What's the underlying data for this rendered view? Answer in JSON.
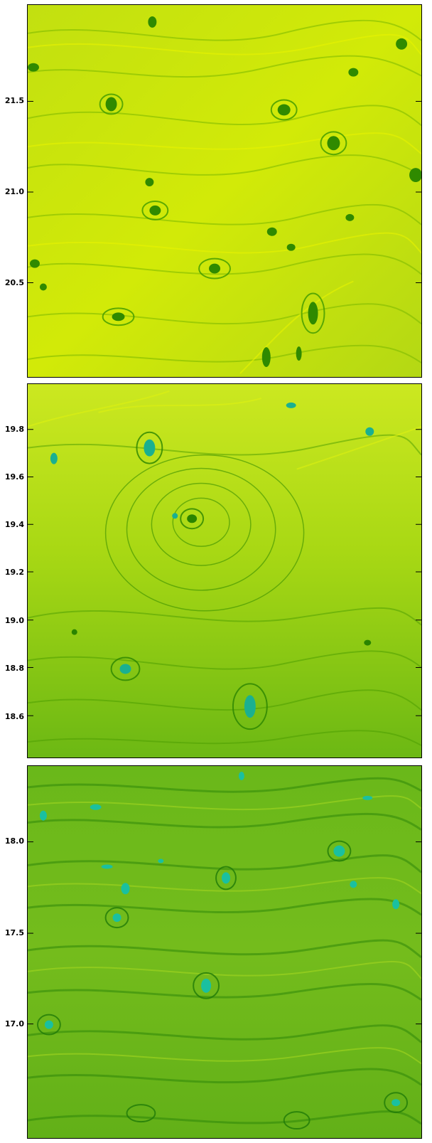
{
  "figure": {
    "panels": [
      {
        "id": "top",
        "y_ticks": [
          "21.5",
          "21.0",
          "20.5"
        ],
        "y_values": [
          21.5,
          21.0,
          20.5
        ],
        "colors": {
          "base": "#b8dc10",
          "light": "#e6f200",
          "dark": "#2f8a00",
          "core": "#1f6e00"
        }
      },
      {
        "id": "middle",
        "y_ticks": [
          "19.8",
          "19.6",
          "19.4",
          "19.2",
          "19.0",
          "18.8",
          "18.6"
        ],
        "y_values": [
          19.8,
          19.6,
          19.4,
          19.2,
          19.0,
          18.8,
          18.6
        ],
        "colors": {
          "base": "#8fcc10",
          "light": "#d4ee10",
          "dark": "#2a8400",
          "core": "#1ab090"
        }
      },
      {
        "id": "bottom",
        "y_ticks": [
          "18.0",
          "17.5",
          "17.0"
        ],
        "y_values": [
          18.0,
          17.5,
          17.0
        ],
        "colors": {
          "base": "#6ab81a",
          "light": "#a4d820",
          "dark": "#1f7a08",
          "core": "#1ac0a0"
        }
      }
    ]
  }
}
